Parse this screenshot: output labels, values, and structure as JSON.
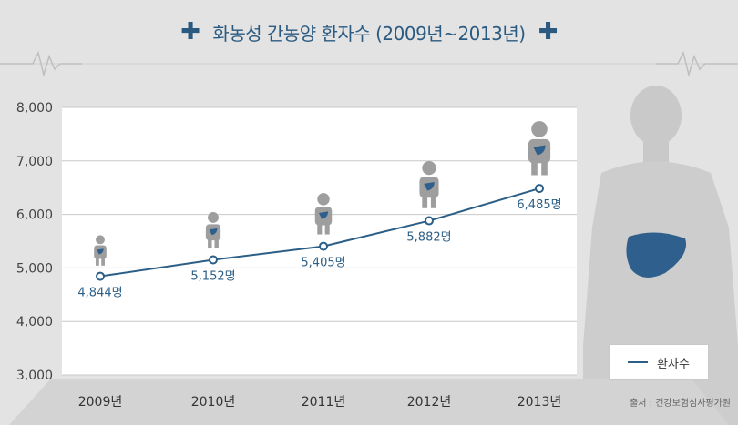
{
  "title": "화농성 간농양 환자수 (2009년~2013년)",
  "colors": {
    "accent": "#2c5f87",
    "bar_bg": "#e3e3e3",
    "plot_bg": "#ffffff",
    "figure": "#9e9e9e",
    "liver": "#2f5f8c"
  },
  "legend": {
    "label": "환자수"
  },
  "source": "출처 : 건강보험심사평가원",
  "chart_data": {
    "type": "line",
    "title": "화농성 간농양 환자수 (2009년~2013년)",
    "categories": [
      "2009년",
      "2010년",
      "2011년",
      "2012년",
      "2013년"
    ],
    "series": [
      {
        "name": "환자수",
        "values": [
          4844,
          5152,
          5405,
          5882,
          6485
        ]
      }
    ],
    "data_labels": [
      "4,844명",
      "5,152명",
      "5,405명",
      "5,882명",
      "6,485명"
    ],
    "y_ticks": [
      "3,000",
      "4,000",
      "5,000",
      "6,000",
      "7,000",
      "8,000"
    ],
    "ylim": [
      3000,
      8000
    ],
    "grid": true,
    "legend_position": "bottom-right"
  }
}
